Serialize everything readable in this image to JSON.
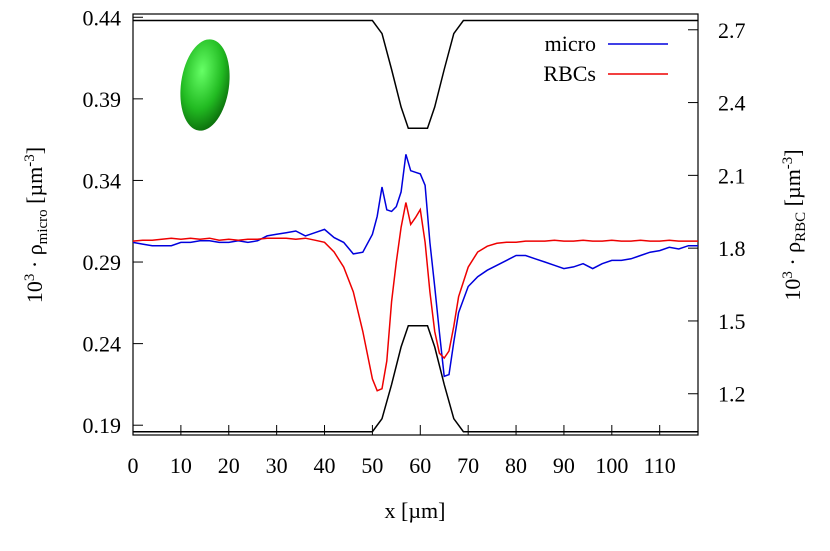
{
  "chart_data": {
    "type": "line",
    "xlabel": "x [µm]",
    "ylabel": [
      "10",
      "3",
      " · ρ",
      "micro",
      " [µm",
      "-3",
      "]"
    ],
    "y2label": [
      "10",
      "3",
      " · ρ",
      "RBC",
      " [µm",
      "-3",
      "]"
    ],
    "xlim": [
      0,
      118
    ],
    "xticks": [
      0,
      10,
      20,
      30,
      40,
      50,
      60,
      70,
      80,
      90,
      100,
      110
    ],
    "ylim": [
      0.184,
      0.442
    ],
    "yticks": [
      0.19,
      0.24,
      0.29,
      0.34,
      0.39,
      0.44
    ],
    "y2lim": [
      1.03,
      2.765
    ],
    "y2ticks": [
      1.2,
      1.5,
      1.8,
      2.1,
      2.4,
      2.7
    ],
    "legend": "top right",
    "x": [
      0,
      2,
      4,
      6,
      8,
      10,
      12,
      14,
      16,
      18,
      20,
      22,
      24,
      26,
      28,
      30,
      32,
      34,
      36,
      38,
      40,
      42,
      44,
      46,
      48,
      50,
      51,
      52,
      53,
      54,
      55,
      56,
      57,
      58,
      59,
      60,
      61,
      62,
      63,
      64,
      65,
      66,
      67,
      68,
      70,
      72,
      74,
      76,
      78,
      80,
      82,
      84,
      86,
      88,
      90,
      92,
      94,
      96,
      98,
      100,
      102,
      104,
      106,
      108,
      110,
      112,
      114,
      116,
      118
    ],
    "series": [
      {
        "name": "micro",
        "color": "#0000dd",
        "values": [
          0.302,
          0.301,
          0.3,
          0.3,
          0.3,
          0.302,
          0.302,
          0.303,
          0.303,
          0.302,
          0.302,
          0.303,
          0.302,
          0.303,
          0.306,
          0.307,
          0.308,
          0.309,
          0.306,
          0.308,
          0.31,
          0.305,
          0.302,
          0.295,
          0.296,
          0.307,
          0.318,
          0.336,
          0.322,
          0.321,
          0.324,
          0.333,
          0.356,
          0.346,
          0.345,
          0.344,
          0.337,
          0.302,
          0.275,
          0.247,
          0.22,
          0.221,
          0.241,
          0.259,
          0.275,
          0.281,
          0.285,
          0.288,
          0.291,
          0.294,
          0.294,
          0.292,
          0.29,
          0.288,
          0.286,
          0.287,
          0.289,
          0.286,
          0.289,
          0.291,
          0.291,
          0.292,
          0.294,
          0.296,
          0.297,
          0.299,
          0.298,
          0.3,
          0.3
        ]
      },
      {
        "name": "RBCs",
        "color": "#ee0000",
        "axis": "y2",
        "values": [
          1.829,
          1.833,
          1.833,
          1.837,
          1.841,
          1.837,
          1.841,
          1.837,
          1.841,
          1.833,
          1.837,
          1.833,
          1.837,
          1.837,
          1.841,
          1.841,
          1.841,
          1.837,
          1.841,
          1.833,
          1.824,
          1.784,
          1.722,
          1.62,
          1.457,
          1.261,
          1.212,
          1.221,
          1.335,
          1.58,
          1.743,
          1.886,
          1.988,
          1.898,
          1.926,
          1.959,
          1.824,
          1.62,
          1.457,
          1.367,
          1.347,
          1.376,
          1.478,
          1.6,
          1.722,
          1.784,
          1.808,
          1.82,
          1.824,
          1.824,
          1.829,
          1.829,
          1.829,
          1.833,
          1.829,
          1.829,
          1.833,
          1.829,
          1.829,
          1.833,
          1.829,
          1.829,
          1.833,
          1.829,
          1.829,
          1.833,
          1.829,
          1.829,
          1.829
        ]
      }
    ],
    "walls": [
      {
        "color": "#000000",
        "x": [
          0,
          50,
          52,
          54,
          56,
          57.5,
          61.5,
          63,
          65,
          67,
          69,
          118
        ],
        "values": [
          0.438,
          0.438,
          0.43,
          0.408,
          0.385,
          0.372,
          0.372,
          0.385,
          0.408,
          0.43,
          0.438,
          0.438
        ]
      },
      {
        "color": "#000000",
        "x": [
          0,
          50,
          52,
          54,
          56,
          57.5,
          61.5,
          63,
          65,
          67,
          69,
          118
        ],
        "values": [
          0.186,
          0.186,
          0.194,
          0.215,
          0.238,
          0.251,
          0.251,
          0.238,
          0.215,
          0.194,
          0.186,
          0.186
        ]
      }
    ]
  }
}
